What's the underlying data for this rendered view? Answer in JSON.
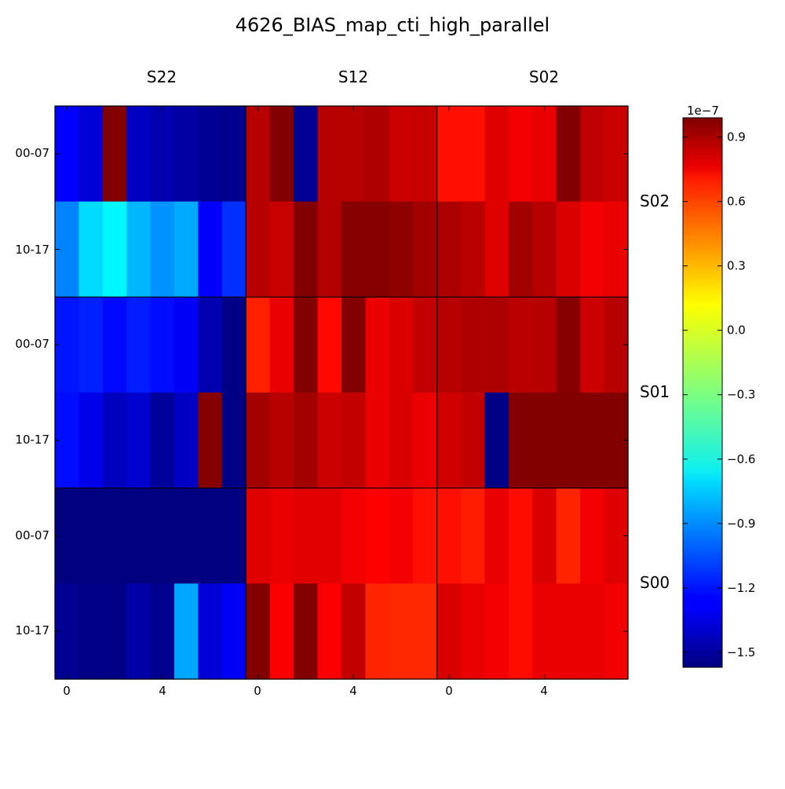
{
  "chart_data": {
    "type": "heatmap",
    "title": "4626_BIAS_map_cti_high_parallel",
    "colormap": "jet",
    "vmin": -1.57,
    "vmax": 0.99,
    "colorbar": {
      "exponent_label": "1e−7",
      "ticks": [
        0.9,
        0.6,
        0.3,
        0.0,
        -0.3,
        -0.6,
        -0.9,
        -1.2,
        -1.5
      ],
      "tick_labels": [
        "0.9",
        "0.6",
        "0.3",
        "0.0",
        "−0.3",
        "−0.6",
        "−0.9",
        "−1.2",
        "−1.5"
      ]
    },
    "column_groups": [
      "S22",
      "S12",
      "S02"
    ],
    "row_groups": [
      "S02",
      "S01",
      "S00"
    ],
    "row_tick_labels": [
      "00-07",
      "10-17",
      "00-07",
      "10-17",
      "00-07",
      "10-17"
    ],
    "x_tick_labels": [
      "0",
      "4"
    ],
    "x_ticks": [
      0,
      4
    ],
    "rows": [
      [
        -1.25,
        -1.35,
        0.98,
        -1.4,
        -1.45,
        -1.48,
        -1.52,
        -1.53,
        0.85,
        0.98,
        -1.52,
        0.85,
        0.85,
        0.87,
        0.8,
        0.81,
        0.63,
        0.63,
        0.75,
        0.7,
        0.72,
        0.98,
        0.83,
        0.8
      ],
      [
        -0.92,
        -0.7,
        -0.63,
        -0.79,
        -0.88,
        -0.82,
        -1.26,
        -1.13,
        0.85,
        0.81,
        0.98,
        0.86,
        0.97,
        0.97,
        0.95,
        0.9,
        0.88,
        0.84,
        0.75,
        0.9,
        0.85,
        0.76,
        0.7,
        0.72
      ],
      [
        -1.2,
        -1.17,
        -1.23,
        -1.18,
        -1.22,
        -1.27,
        -1.45,
        -1.55,
        0.59,
        0.72,
        0.98,
        0.65,
        0.98,
        0.72,
        0.76,
        0.82,
        0.85,
        0.87,
        0.88,
        0.84,
        0.85,
        0.97,
        0.8,
        0.85
      ],
      [
        -1.22,
        -1.3,
        -1.41,
        -1.37,
        -1.5,
        -1.4,
        0.97,
        -1.55,
        0.9,
        0.85,
        0.9,
        0.8,
        0.82,
        0.72,
        0.76,
        0.72,
        0.79,
        0.82,
        -1.55,
        0.98,
        0.98,
        0.98,
        0.98,
        0.98
      ],
      [
        -1.57,
        -1.57,
        -1.57,
        -1.57,
        -1.57,
        -1.57,
        -1.57,
        -1.57,
        0.75,
        0.72,
        0.74,
        0.74,
        0.7,
        0.67,
        0.7,
        0.63,
        0.63,
        0.6,
        0.72,
        0.64,
        0.76,
        0.58,
        0.7,
        0.75
      ],
      [
        -1.52,
        -1.55,
        -1.55,
        -1.47,
        -1.53,
        -0.83,
        -1.35,
        -1.27,
        0.98,
        0.68,
        0.98,
        0.68,
        0.82,
        0.58,
        0.57,
        0.57,
        0.76,
        0.72,
        0.7,
        0.64,
        0.72,
        0.72,
        0.72,
        0.7
      ]
    ]
  }
}
